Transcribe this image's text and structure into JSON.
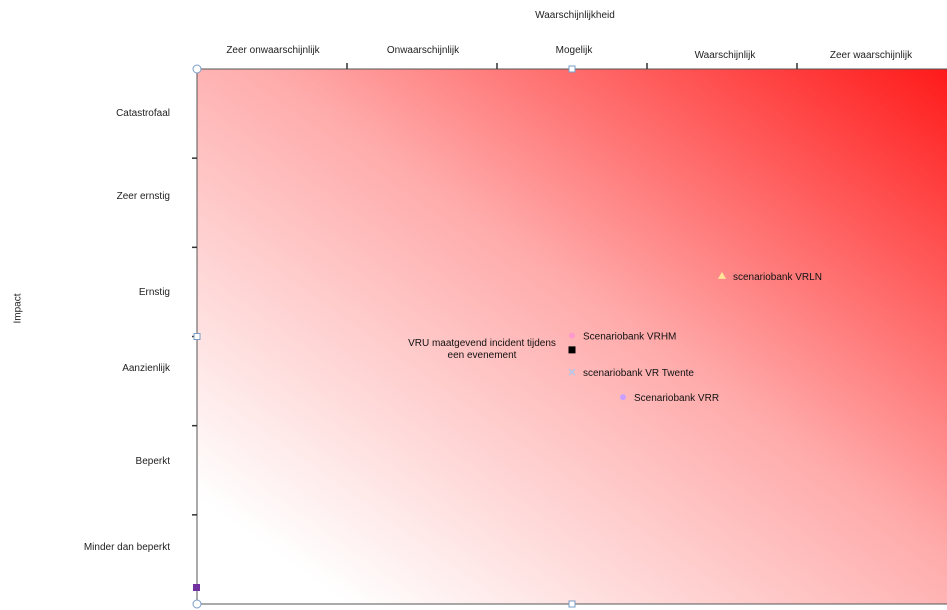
{
  "chart_data": {
    "type": "scatter",
    "title": "",
    "xlabel": "Waarschijnlijkheid",
    "ylabel": "Impact",
    "x_categories": [
      "Zeer onwaarschijnlijk",
      "Onwaarschijnlijk",
      "Mogelijk",
      "Waarschijnlijk",
      "Zeer waarschijnlijk"
    ],
    "y_categories": [
      "Catastrofaal",
      "Zeer ernstig",
      "Ernstig",
      "Aanzienlijk",
      "Beperkt",
      "Minder dan beperkt"
    ],
    "xlim": [
      0,
      5
    ],
    "ylim": [
      0,
      6
    ],
    "background": "gradient white (bottom-left) to red (top-right)",
    "colors": {
      "low": "#ffffff",
      "high": "#ff1a1a",
      "axis": "#555555"
    },
    "points": [
      {
        "label": "scenariobank  VRLN",
        "x": 3.5,
        "y": 3.68,
        "marker": "triangle",
        "color": "#ffe699",
        "label_side": "right"
      },
      {
        "label": "Scenariobank  VRHM",
        "x": 2.5,
        "y": 3.01,
        "marker": "circle",
        "color": "#ff99cc",
        "label_side": "right"
      },
      {
        "label": "VRU  maatgevend  incident  tijdens  een  evenement",
        "x": 2.5,
        "y": 2.85,
        "marker": "square",
        "color": "#000000",
        "label_side": "left"
      },
      {
        "label": "scenariobank  VR Twente",
        "x": 2.5,
        "y": 2.6,
        "marker": "x",
        "color": "#b4c7e7",
        "label_side": "right"
      },
      {
        "label": "Scenariobank  VRR",
        "x": 2.84,
        "y": 2.32,
        "marker": "circle",
        "color": "#c9a0ff",
        "label_side": "right"
      }
    ]
  }
}
